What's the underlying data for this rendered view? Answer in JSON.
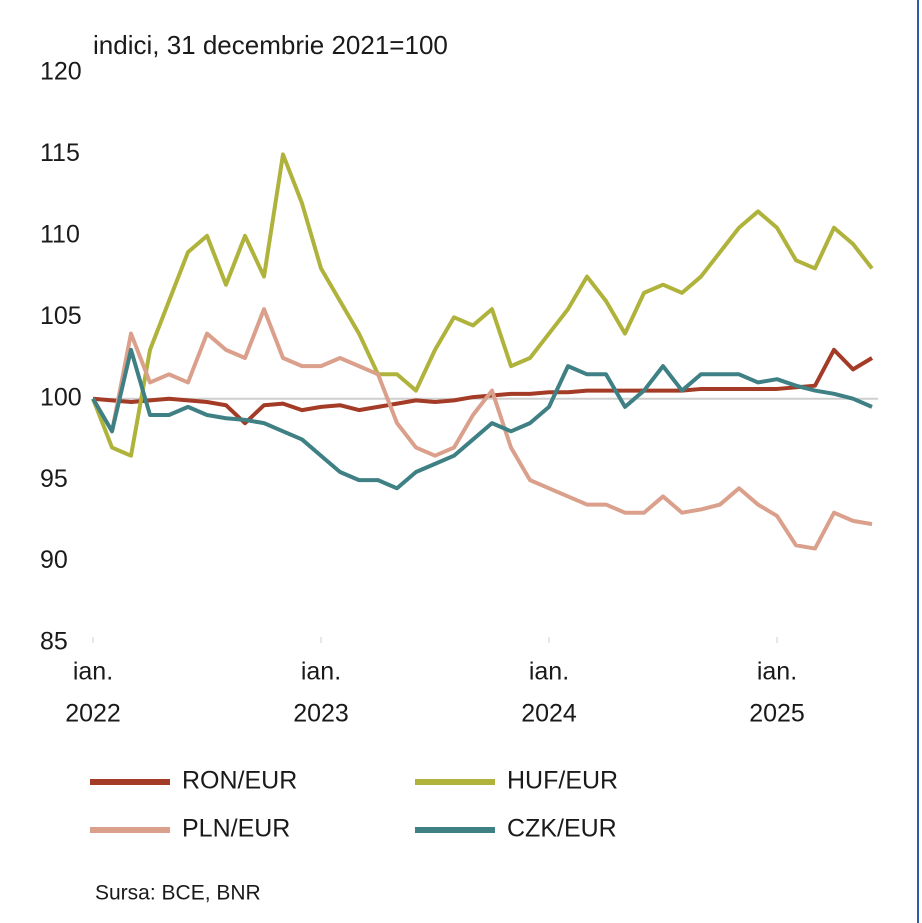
{
  "chart_data": {
    "type": "line",
    "title": "indici, 31 decembrie 2021=100",
    "source": "Sursa: BCE, BNR",
    "x": [
      "2022-01",
      "2022-02",
      "2022-03",
      "2022-04",
      "2022-05",
      "2022-06",
      "2022-07",
      "2022-08",
      "2022-09",
      "2022-10",
      "2022-11",
      "2022-12",
      "2023-01",
      "2023-02",
      "2023-03",
      "2023-04",
      "2023-05",
      "2023-06",
      "2023-07",
      "2023-08",
      "2023-09",
      "2023-10",
      "2023-11",
      "2023-12",
      "2024-01",
      "2024-02",
      "2024-03",
      "2024-04",
      "2024-05",
      "2024-06",
      "2024-07",
      "2024-08",
      "2024-09",
      "2024-10",
      "2024-11",
      "2024-12",
      "2025-01",
      "2025-02",
      "2025-03",
      "2025-04",
      "2025-05",
      "2025-06"
    ],
    "xticks": [
      {
        "value": "2022-01",
        "label": [
          "ian.",
          "2022"
        ]
      },
      {
        "value": "2023-01",
        "label": [
          "ian.",
          "2023"
        ]
      },
      {
        "value": "2024-01",
        "label": [
          "ian.",
          "2024"
        ]
      },
      {
        "value": "2025-01",
        "label": [
          "ian.",
          "2025"
        ]
      }
    ],
    "ylim": [
      85,
      120
    ],
    "yticks": [
      85,
      90,
      95,
      100,
      105,
      110,
      115,
      120
    ],
    "reference_line": 100,
    "legend": "bottom",
    "series": [
      {
        "name": "RON/EUR",
        "color": "#a33b26",
        "values": [
          100,
          99.9,
          99.8,
          99.9,
          100,
          99.9,
          99.8,
          99.6,
          98.5,
          99.6,
          99.7,
          99.3,
          99.5,
          99.6,
          99.3,
          99.5,
          99.7,
          99.9,
          99.8,
          99.9,
          100.1,
          100.2,
          100.3,
          100.3,
          100.4,
          100.4,
          100.5,
          100.5,
          100.5,
          100.5,
          100.5,
          100.5,
          100.6,
          100.6,
          100.6,
          100.6,
          100.6,
          100.7,
          100.8,
          103.0,
          101.8,
          102.5
        ]
      },
      {
        "name": "HUF/EUR",
        "color": "#b0b33b",
        "values": [
          100,
          97,
          96.5,
          103,
          106,
          109,
          110,
          107,
          110,
          107.5,
          115,
          112,
          108,
          106,
          104,
          101.5,
          101.5,
          100.5,
          103,
          105,
          104.5,
          105.5,
          102,
          102.5,
          104,
          105.5,
          107.5,
          106,
          104,
          106.5,
          107,
          106.5,
          107.5,
          109,
          110.5,
          111.5,
          110.5,
          108.5,
          108,
          110.5,
          109.5,
          108
        ]
      },
      {
        "name": "PLN/EUR",
        "color": "#dba08c",
        "values": [
          100,
          98,
          104,
          101,
          101.5,
          101,
          104,
          103,
          102.5,
          105.5,
          102.5,
          102,
          102,
          102.5,
          102,
          101.5,
          98.5,
          97,
          96.5,
          97,
          99,
          100.5,
          97,
          95,
          94.5,
          94,
          93.5,
          93.5,
          93,
          93,
          94,
          93,
          93.2,
          93.5,
          94.5,
          93.5,
          92.8,
          91,
          90.8,
          93,
          92.5,
          92.3
        ]
      },
      {
        "name": "CZK/EUR",
        "color": "#3e8084",
        "values": [
          100,
          98,
          103,
          99,
          99,
          99.5,
          99,
          98.8,
          98.7,
          98.5,
          98,
          97.5,
          96.5,
          95.5,
          95,
          95,
          94.5,
          95.5,
          96,
          96.5,
          97.5,
          98.5,
          98,
          98.5,
          99.5,
          102,
          101.5,
          101.5,
          99.5,
          100.5,
          102,
          100.5,
          101.5,
          101.5,
          101.5,
          101,
          101.2,
          100.8,
          100.5,
          100.3,
          100,
          99.5
        ]
      }
    ]
  }
}
